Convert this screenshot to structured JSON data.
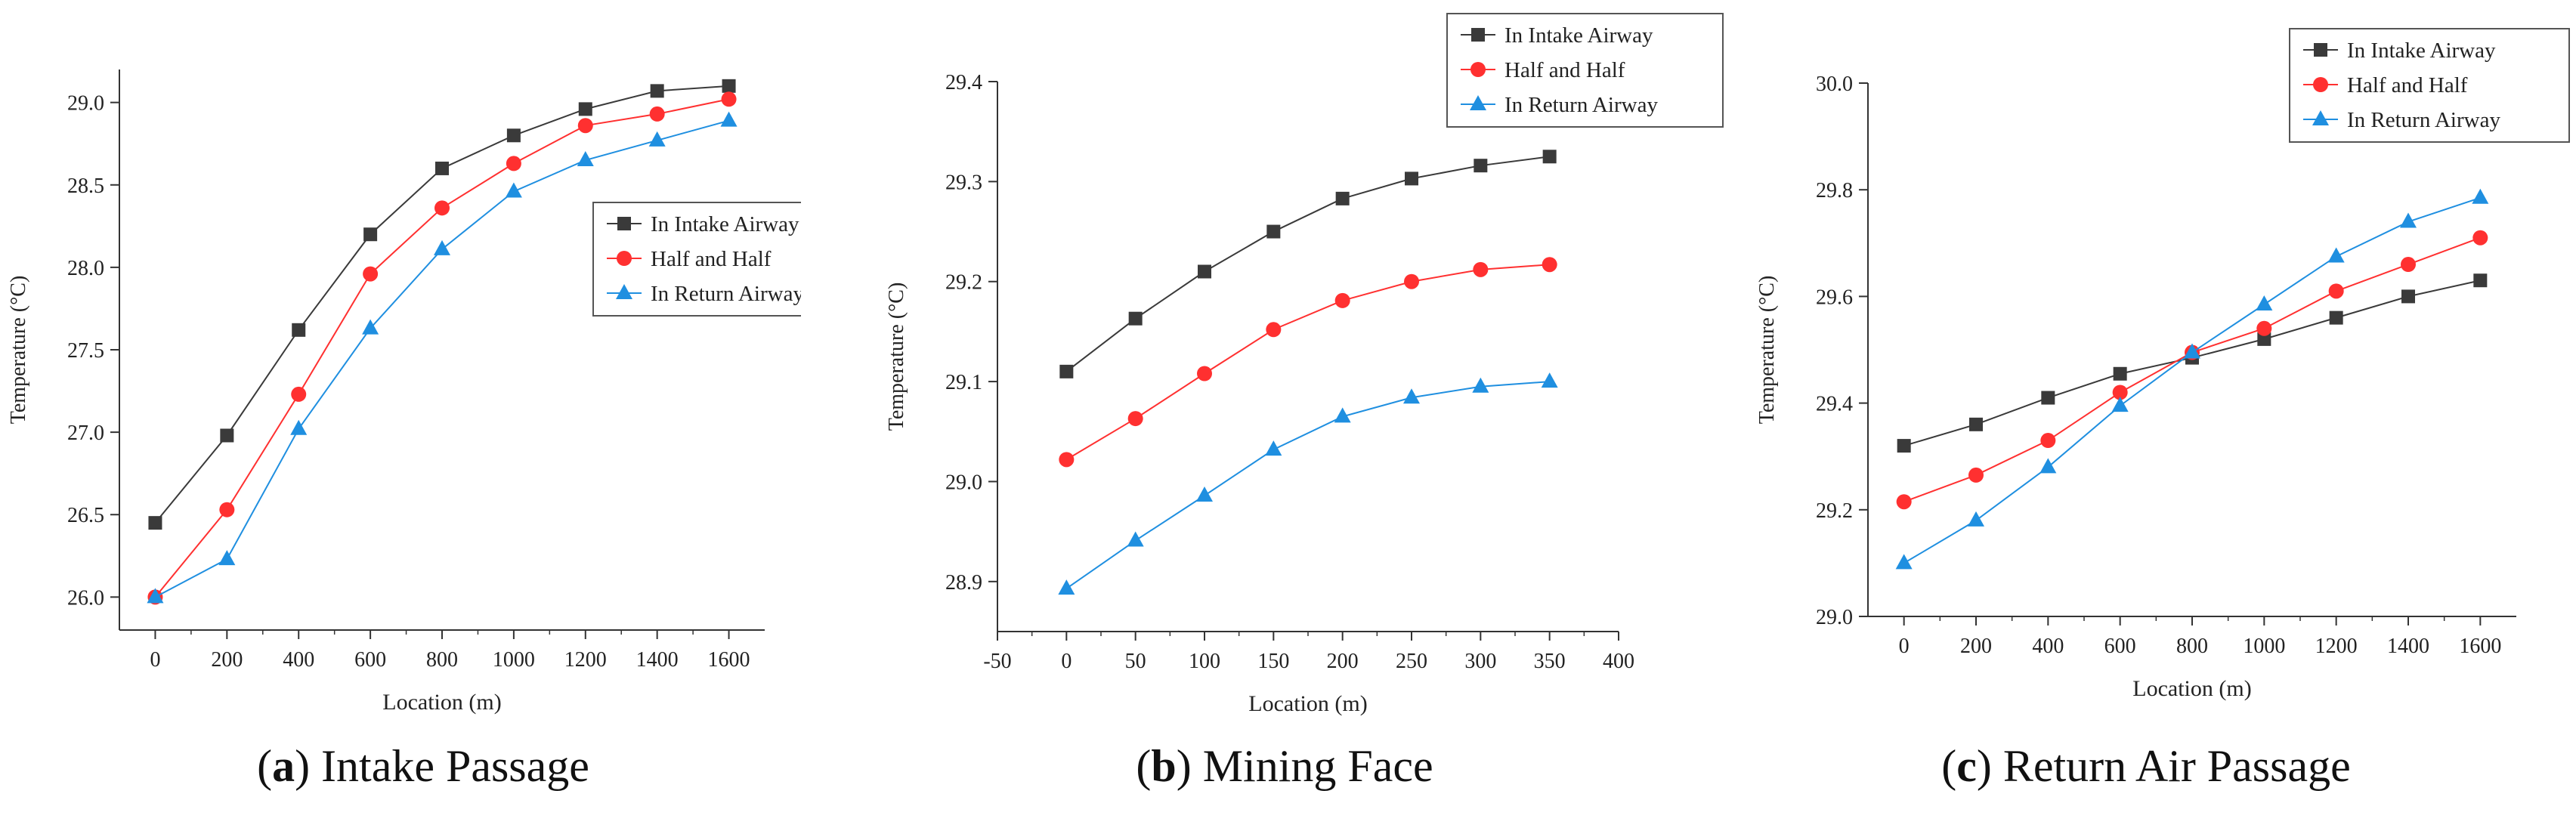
{
  "colors": {
    "intake": "#3a3a3a",
    "half": "#ff3030",
    "return": "#1f8fe0",
    "axis": "#333333"
  },
  "legend_items": [
    "In Intake Airway",
    "Half and Half",
    "In Return Airway"
  ],
  "chart_data": [
    {
      "type": "line",
      "xlabel": "Location (m)",
      "ylabel": "Temperature (°C)",
      "xlim": [
        -100,
        1700
      ],
      "ylim": [
        25.8,
        29.2
      ],
      "xticks": [
        0,
        200,
        400,
        600,
        800,
        1000,
        1200,
        1400,
        1600
      ],
      "yticks": [
        26.0,
        26.5,
        27.0,
        27.5,
        28.0,
        28.5,
        29.0
      ],
      "ytick_labels": [
        "26.0",
        "26.5",
        "27.0",
        "27.5",
        "28.0",
        "28.5",
        "29.0"
      ],
      "legend_position": "right",
      "x": [
        0,
        200,
        400,
        600,
        800,
        1000,
        1200,
        1400,
        1600
      ],
      "series": [
        {
          "name": "In Intake Airway",
          "marker": "square",
          "values": [
            26.45,
            26.98,
            27.62,
            28.2,
            28.6,
            28.8,
            28.96,
            29.07,
            29.1
          ]
        },
        {
          "name": "Half and Half",
          "marker": "circle",
          "values": [
            26.0,
            26.53,
            27.23,
            27.96,
            28.36,
            28.63,
            28.86,
            28.93,
            29.02
          ]
        },
        {
          "name": "In Return Airway",
          "marker": "triangle",
          "values": [
            26.0,
            26.23,
            27.02,
            27.63,
            28.11,
            28.46,
            28.65,
            28.77,
            28.89
          ]
        }
      ],
      "caption_letter": "a",
      "caption_text": " Intake Passage"
    },
    {
      "type": "line",
      "xlabel": "Location (m)",
      "ylabel": "Temperature (°C)",
      "xlim": [
        -50,
        400
      ],
      "ylim": [
        28.85,
        29.4
      ],
      "xticks": [
        -50,
        0,
        50,
        100,
        150,
        200,
        250,
        300,
        350,
        400
      ],
      "yticks": [
        28.9,
        29.0,
        29.1,
        29.2,
        29.3,
        29.4
      ],
      "ytick_labels": [
        "28.9",
        "29.0",
        "29.1",
        "29.2",
        "29.3",
        "29.4"
      ],
      "legend_position": "top-right",
      "x": [
        0,
        50,
        100,
        150,
        200,
        250,
        300,
        350
      ],
      "series": [
        {
          "name": "In Intake Airway",
          "marker": "square",
          "values": [
            29.11,
            29.163,
            29.21,
            29.25,
            29.283,
            29.303,
            29.316,
            29.325
          ]
        },
        {
          "name": "Half and Half",
          "marker": "circle",
          "values": [
            29.022,
            29.063,
            29.108,
            29.152,
            29.181,
            29.2,
            29.212,
            29.217
          ]
        },
        {
          "name": "In Return Airway",
          "marker": "triangle",
          "values": [
            28.893,
            28.941,
            28.986,
            29.032,
            29.065,
            29.084,
            29.095,
            29.1
          ]
        }
      ],
      "caption_letter": "b",
      "caption_text": " Mining Face"
    },
    {
      "type": "line",
      "xlabel": "Location (m)",
      "ylabel": "Temperature (°C)",
      "xlim": [
        -100,
        1700
      ],
      "ylim": [
        29.0,
        30.0
      ],
      "xticks": [
        0,
        200,
        400,
        600,
        800,
        1000,
        1200,
        1400,
        1600
      ],
      "yticks": [
        29.0,
        29.2,
        29.4,
        29.6,
        29.8,
        30.0
      ],
      "ytick_labels": [
        "29.0",
        "29.2",
        "29.4",
        "29.6",
        "29.8",
        "30.0"
      ],
      "legend_position": "top-right",
      "x": [
        0,
        200,
        400,
        600,
        800,
        1000,
        1200,
        1400,
        1600
      ],
      "series": [
        {
          "name": "In Intake Airway",
          "marker": "square",
          "values": [
            29.32,
            29.36,
            29.41,
            29.455,
            29.485,
            29.52,
            29.56,
            29.6,
            29.63
          ]
        },
        {
          "name": "Half and Half",
          "marker": "circle",
          "values": [
            29.215,
            29.265,
            29.33,
            29.42,
            29.495,
            29.54,
            29.61,
            29.66,
            29.71
          ]
        },
        {
          "name": "In Return Airway",
          "marker": "triangle",
          "values": [
            29.1,
            29.18,
            29.28,
            29.395,
            29.495,
            29.585,
            29.675,
            29.74,
            29.785
          ]
        }
      ],
      "caption_letter": "c",
      "caption_text": " Return Air Passage"
    }
  ]
}
